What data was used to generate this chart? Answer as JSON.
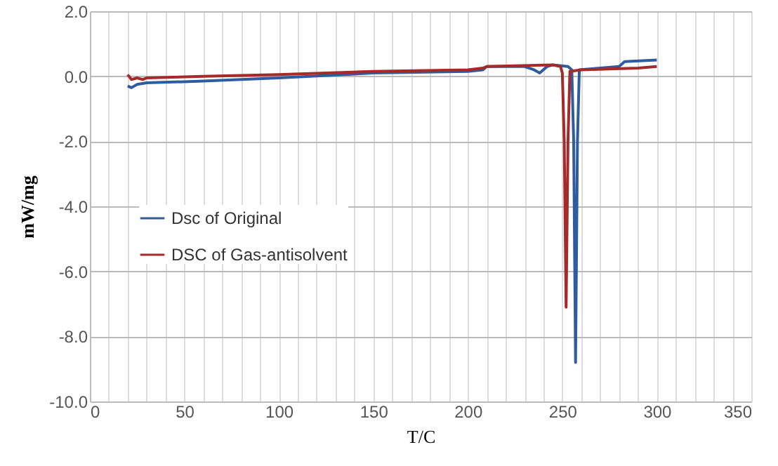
{
  "chart_data": {
    "type": "line",
    "xlabel": "T/C",
    "ylabel": "mW/mg",
    "series": [
      {
        "name": "Dsc of Original",
        "color": "#2e5c9e",
        "x": [
          20,
          22,
          25,
          30,
          60,
          100,
          150,
          200,
          208,
          210,
          230,
          235,
          238,
          242,
          245,
          253,
          255,
          256,
          257,
          258,
          259,
          270,
          280,
          283,
          300
        ],
        "values": [
          -0.3,
          -0.35,
          -0.25,
          -0.2,
          -0.15,
          -0.05,
          0.1,
          0.15,
          0.2,
          0.3,
          0.3,
          0.2,
          0.1,
          0.3,
          0.35,
          0.3,
          0.2,
          -2.0,
          -8.8,
          -2.0,
          0.2,
          0.25,
          0.3,
          0.45,
          0.5
        ]
      },
      {
        "name": "DSC of Gas-antisolvent",
        "color": "#a52a2a",
        "x": [
          20,
          22,
          25,
          28,
          30,
          60,
          100,
          150,
          200,
          208,
          210,
          245,
          249,
          250,
          251,
          252,
          253,
          254,
          260,
          290,
          300
        ],
        "values": [
          0.05,
          -0.1,
          -0.05,
          -0.1,
          -0.05,
          0.0,
          0.05,
          0.15,
          0.2,
          0.25,
          0.3,
          0.35,
          0.3,
          0.1,
          -2.0,
          -7.1,
          -2.0,
          0.15,
          0.2,
          0.25,
          0.3
        ]
      }
    ],
    "xlim": [
      0,
      350
    ],
    "xticks": [
      0,
      {
        "value": 10,
        "label": null
      },
      {
        "value": 20,
        "label": null
      },
      {
        "value": 30,
        "label": null
      },
      {
        "value": 40,
        "label": null
      },
      50,
      {
        "value": 60,
        "label": null
      },
      {
        "value": 70,
        "label": null
      },
      {
        "value": 80,
        "label": null
      },
      {
        "value": 90,
        "label": null
      },
      100,
      {
        "value": 110,
        "label": null
      },
      {
        "value": 120,
        "label": null
      },
      {
        "value": 130,
        "label": null
      },
      {
        "value": 140,
        "label": null
      },
      150,
      {
        "value": 160,
        "label": null
      },
      {
        "value": 170,
        "label": null
      },
      {
        "value": 180,
        "label": null
      },
      {
        "value": 190,
        "label": null
      },
      200,
      {
        "value": 210,
        "label": null
      },
      {
        "value": 220,
        "label": null
      },
      {
        "value": 230,
        "label": null
      },
      {
        "value": 240,
        "label": null
      },
      250,
      {
        "value": 260,
        "label": null
      },
      {
        "value": 270,
        "label": null
      },
      {
        "value": 280,
        "label": null
      },
      {
        "value": 290,
        "label": null
      },
      300,
      {
        "value": 310,
        "label": null
      },
      {
        "value": 320,
        "label": null
      },
      {
        "value": 330,
        "label": null
      },
      {
        "value": 340,
        "label": null
      },
      350
    ],
    "ylim": [
      -10,
      2
    ],
    "yticks": [
      {
        "value": -10,
        "label": "-10.0"
      },
      {
        "value": -8,
        "label": "-8.0"
      },
      {
        "value": -6,
        "label": "-6.0"
      },
      {
        "value": -4,
        "label": "-4.0"
      },
      {
        "value": -2,
        "label": "-2.0"
      },
      {
        "value": 0,
        "label": "0.0"
      },
      {
        "value": 2,
        "label": "2.0"
      }
    ],
    "grid": true,
    "legend": "left",
    "line_style": "solid",
    "marker": "none"
  }
}
